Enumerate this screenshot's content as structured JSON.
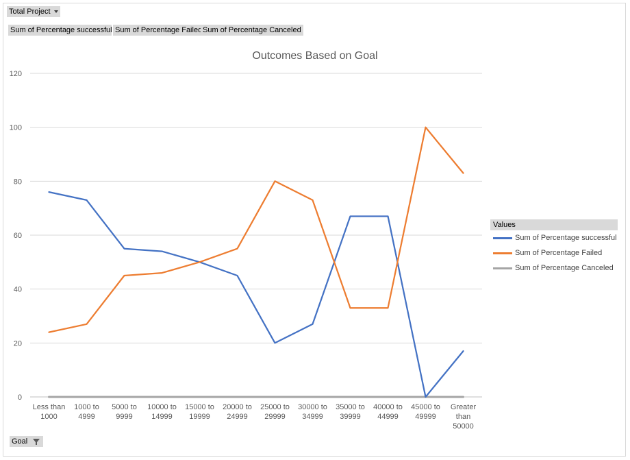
{
  "filters": {
    "report_filter_label": "Total Project",
    "value_buttons": [
      "Sum of Percentage successful",
      "Sum of Percentage Failed",
      "Sum of Percentage Canceled"
    ],
    "axis_field_label": "Goal"
  },
  "legend": {
    "title": "Values"
  },
  "chart_data": {
    "type": "line",
    "title": "Outcomes Based on Goal",
    "xlabel": "",
    "ylabel": "",
    "ylim": [
      0,
      120
    ],
    "y_ticks": [
      0,
      20,
      40,
      60,
      80,
      100,
      120
    ],
    "grid": true,
    "legend_position": "right",
    "categories": [
      "Less than 1000",
      "1000 to 4999",
      "5000 to 9999",
      "10000 to 14999",
      "15000 to 19999",
      "20000 to 24999",
      "25000 to 29999",
      "30000 to 34999",
      "35000 to 39999",
      "40000 to 44999",
      "45000 to 49999",
      "Greater than 50000"
    ],
    "category_lines": [
      [
        "Less than",
        "1000"
      ],
      [
        "1000 to",
        "4999"
      ],
      [
        "5000 to",
        "9999"
      ],
      [
        "10000 to",
        "14999"
      ],
      [
        "15000 to",
        "19999"
      ],
      [
        "20000 to",
        "24999"
      ],
      [
        "25000 to",
        "29999"
      ],
      [
        "30000 to",
        "34999"
      ],
      [
        "35000 to",
        "39999"
      ],
      [
        "40000 to",
        "44999"
      ],
      [
        "45000 to",
        "49999"
      ],
      [
        "Greater",
        "than",
        "50000"
      ]
    ],
    "series": [
      {
        "name": "Sum of Percentage successful",
        "color": "#4472c4",
        "values": [
          76,
          73,
          55,
          54,
          50,
          45,
          20,
          27,
          67,
          67,
          0,
          17
        ]
      },
      {
        "name": "Sum of Percentage Failed",
        "color": "#ed7d31",
        "values": [
          24,
          27,
          45,
          46,
          50,
          55,
          80,
          73,
          33,
          33,
          100,
          83
        ]
      },
      {
        "name": "Sum of Percentage Canceled",
        "color": "#a5a5a5",
        "values": [
          0,
          0,
          0,
          0,
          0,
          0,
          0,
          0,
          0,
          0,
          0,
          0
        ]
      }
    ]
  }
}
